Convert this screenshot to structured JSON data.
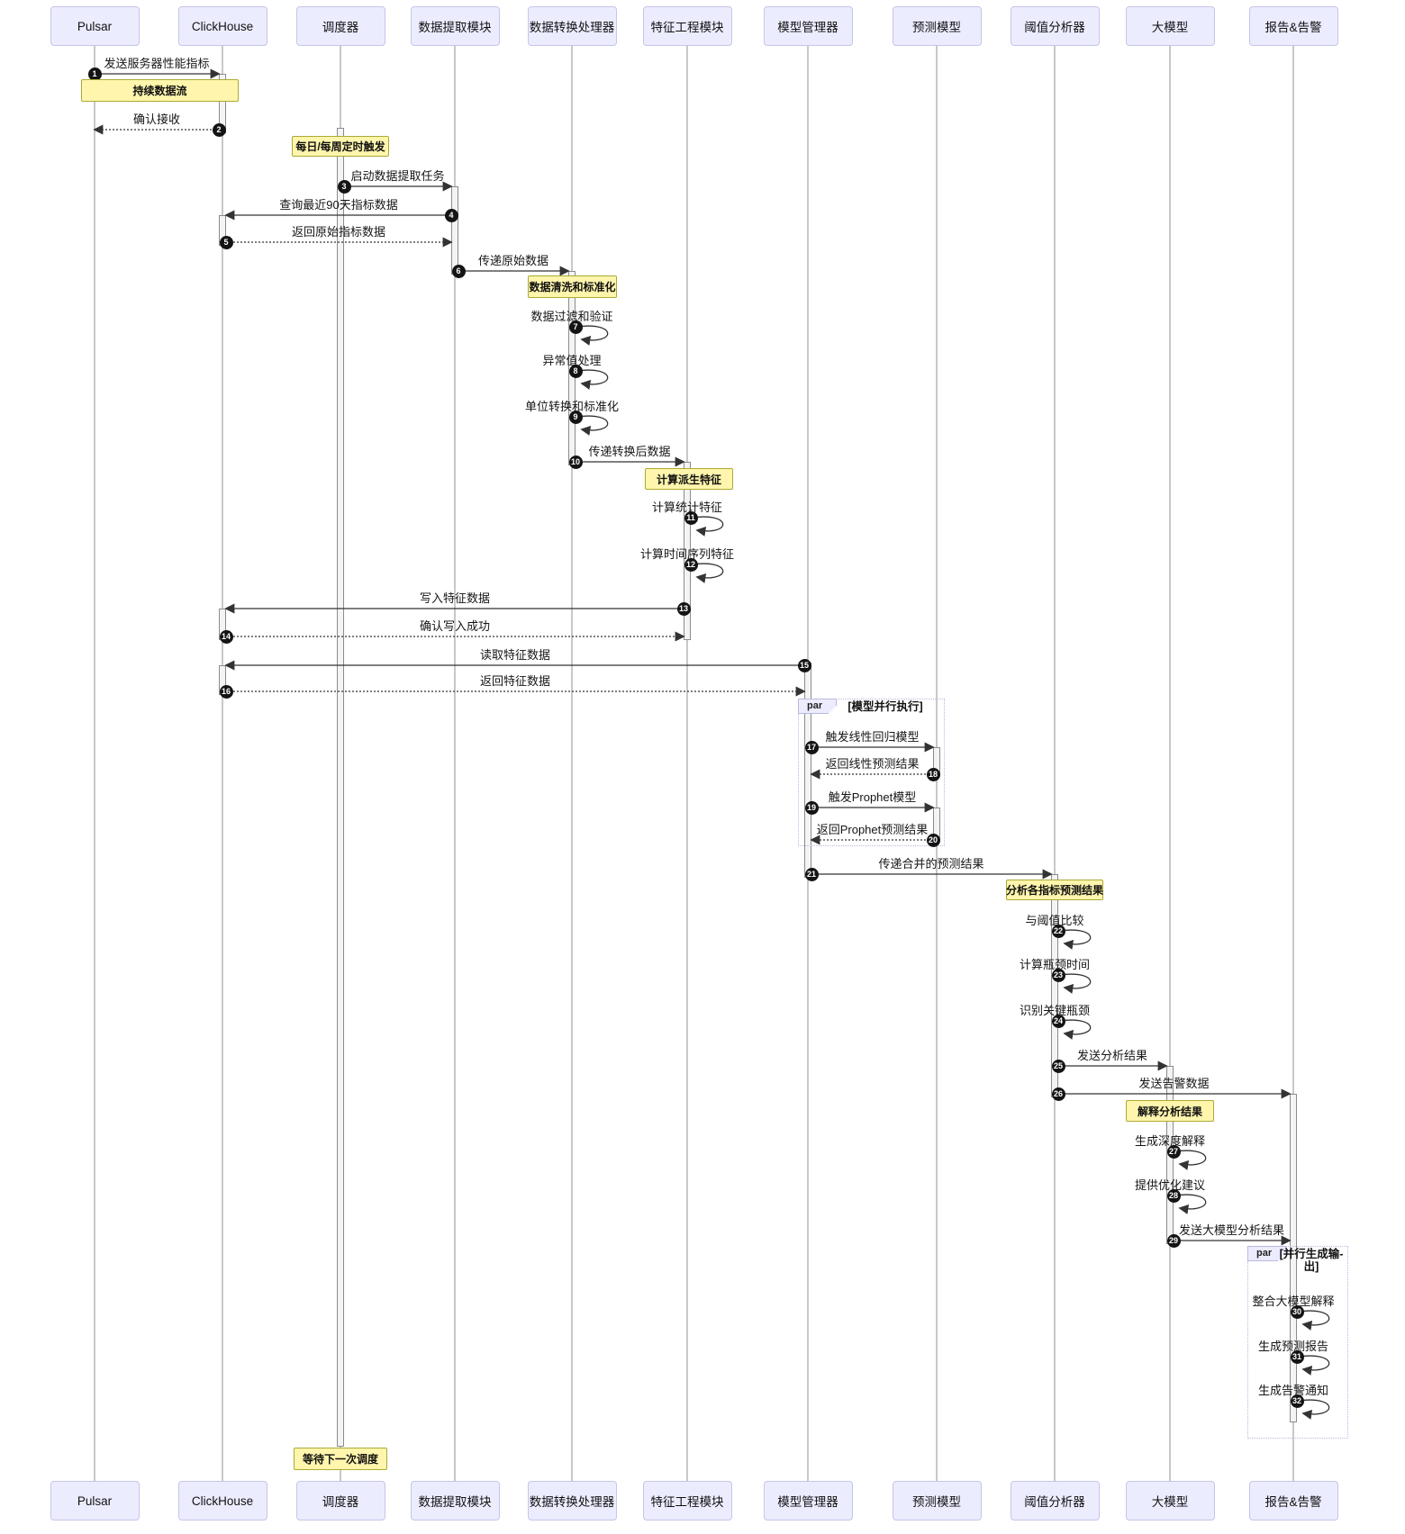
{
  "diagram": {
    "type": "sequence-diagram",
    "participants": [
      {
        "id": "pulsar",
        "label": "Pulsar"
      },
      {
        "id": "clickhouse",
        "label": "ClickHouse"
      },
      {
        "id": "scheduler",
        "label": "调度器"
      },
      {
        "id": "extractor",
        "label": "数据提取模块"
      },
      {
        "id": "transformer",
        "label": "数据转换处理器"
      },
      {
        "id": "feature",
        "label": "特征工程模块"
      },
      {
        "id": "model_mgr",
        "label": "模型管理器"
      },
      {
        "id": "predictor",
        "label": "预测模型"
      },
      {
        "id": "threshold",
        "label": "阈值分析器"
      },
      {
        "id": "llm",
        "label": "大模型"
      },
      {
        "id": "report",
        "label": "报告&告警"
      }
    ],
    "notes": [
      {
        "id": "continuous-stream",
        "label": "持续数据流"
      },
      {
        "id": "scheduled-trigger",
        "label": "每日/每周定时触发"
      },
      {
        "id": "data-cleaning",
        "label": "数据清洗和标准化"
      },
      {
        "id": "derived-features",
        "label": "计算派生特征"
      },
      {
        "id": "analyze-predictions",
        "label": "分析各指标预测结果"
      },
      {
        "id": "explain-results",
        "label": "解释分析结果"
      },
      {
        "id": "wait-next-schedule",
        "label": "等待下一次调度"
      }
    ],
    "frames": [
      {
        "label": "par",
        "condition_lines": [
          "[模型并行执行]"
        ]
      },
      {
        "label": "par",
        "condition_lines": [
          "[并行生成输-",
          "出]"
        ]
      }
    ],
    "messages": [
      {
        "seq": 1,
        "from": "pulsar",
        "to": "clickhouse",
        "label": "发送服务器性能指标",
        "line": "solid"
      },
      {
        "seq": 2,
        "from": "clickhouse",
        "to": "pulsar",
        "label": "确认接收",
        "line": "dotted"
      },
      {
        "seq": 3,
        "from": "scheduler",
        "to": "extractor",
        "label": "启动数据提取任务",
        "line": "solid"
      },
      {
        "seq": 4,
        "from": "extractor",
        "to": "clickhouse",
        "label": "查询最近90天指标数据",
        "line": "solid"
      },
      {
        "seq": 5,
        "from": "clickhouse",
        "to": "extractor",
        "label": "返回原始指标数据",
        "line": "dotted"
      },
      {
        "seq": 6,
        "from": "extractor",
        "to": "transformer",
        "label": "传递原始数据",
        "line": "solid"
      },
      {
        "seq": 7,
        "from": "transformer",
        "to": "transformer",
        "label": "数据过滤和验证",
        "line": "self"
      },
      {
        "seq": 8,
        "from": "transformer",
        "to": "transformer",
        "label": "异常值处理",
        "line": "self"
      },
      {
        "seq": 9,
        "from": "transformer",
        "to": "transformer",
        "label": "单位转换和标准化",
        "line": "self"
      },
      {
        "seq": 10,
        "from": "transformer",
        "to": "feature",
        "label": "传递转换后数据",
        "line": "solid"
      },
      {
        "seq": 11,
        "from": "feature",
        "to": "feature",
        "label": "计算统计特征",
        "line": "self"
      },
      {
        "seq": 12,
        "from": "feature",
        "to": "feature",
        "label": "计算时间序列特征",
        "line": "self"
      },
      {
        "seq": 13,
        "from": "feature",
        "to": "clickhouse",
        "label": "写入特征数据",
        "line": "solid"
      },
      {
        "seq": 14,
        "from": "clickhouse",
        "to": "feature",
        "label": "确认写入成功",
        "line": "dotted"
      },
      {
        "seq": 15,
        "from": "model_mgr",
        "to": "clickhouse",
        "label": "读取特征数据",
        "line": "solid"
      },
      {
        "seq": 16,
        "from": "clickhouse",
        "to": "model_mgr",
        "label": "返回特征数据",
        "line": "dotted"
      },
      {
        "seq": 17,
        "from": "model_mgr",
        "to": "predictor",
        "label": "触发线性回归模型",
        "line": "solid"
      },
      {
        "seq": 18,
        "from": "predictor",
        "to": "model_mgr",
        "label": "返回线性预测结果",
        "line": "dotted"
      },
      {
        "seq": 19,
        "from": "model_mgr",
        "to": "predictor",
        "label": "触发Prophet模型",
        "line": "solid"
      },
      {
        "seq": 20,
        "from": "predictor",
        "to": "model_mgr",
        "label": "返回Prophet预测结果",
        "line": "dotted"
      },
      {
        "seq": 21,
        "from": "model_mgr",
        "to": "threshold",
        "label": "传递合并的预测结果",
        "line": "solid"
      },
      {
        "seq": 22,
        "from": "threshold",
        "to": "threshold",
        "label": "与阈值比较",
        "line": "self"
      },
      {
        "seq": 23,
        "from": "threshold",
        "to": "threshold",
        "label": "计算瓶颈时间",
        "line": "self"
      },
      {
        "seq": 24,
        "from": "threshold",
        "to": "threshold",
        "label": "识别关键瓶颈",
        "line": "self"
      },
      {
        "seq": 25,
        "from": "threshold",
        "to": "llm",
        "label": "发送分析结果",
        "line": "solid"
      },
      {
        "seq": 26,
        "from": "threshold",
        "to": "report",
        "label": "发送告警数据",
        "line": "solid"
      },
      {
        "seq": 27,
        "from": "llm",
        "to": "llm",
        "label": "生成深度解释",
        "line": "self"
      },
      {
        "seq": 28,
        "from": "llm",
        "to": "llm",
        "label": "提供优化建议",
        "line": "self"
      },
      {
        "seq": 29,
        "from": "llm",
        "to": "report",
        "label": "发送大模型分析结果",
        "line": "solid"
      },
      {
        "seq": 30,
        "from": "report",
        "to": "report",
        "label": "整合大模型解释",
        "line": "self"
      },
      {
        "seq": 31,
        "from": "report",
        "to": "report",
        "label": "生成预测报告",
        "line": "self"
      },
      {
        "seq": 32,
        "from": "report",
        "to": "report",
        "label": "生成告警通知",
        "line": "self"
      }
    ],
    "colors": {
      "actor_fill": "#ececff",
      "actor_border": "#c5c5e8",
      "note_fill": "#fff5ad",
      "note_border": "#aaaa33",
      "activation_fill": "#f4f4f4",
      "activation_border": "#8c8c8c",
      "arrow": "#333333",
      "lifeline": "#909090",
      "frame_border": "#b9b9e0",
      "frame_label_fill": "#ececff"
    }
  }
}
